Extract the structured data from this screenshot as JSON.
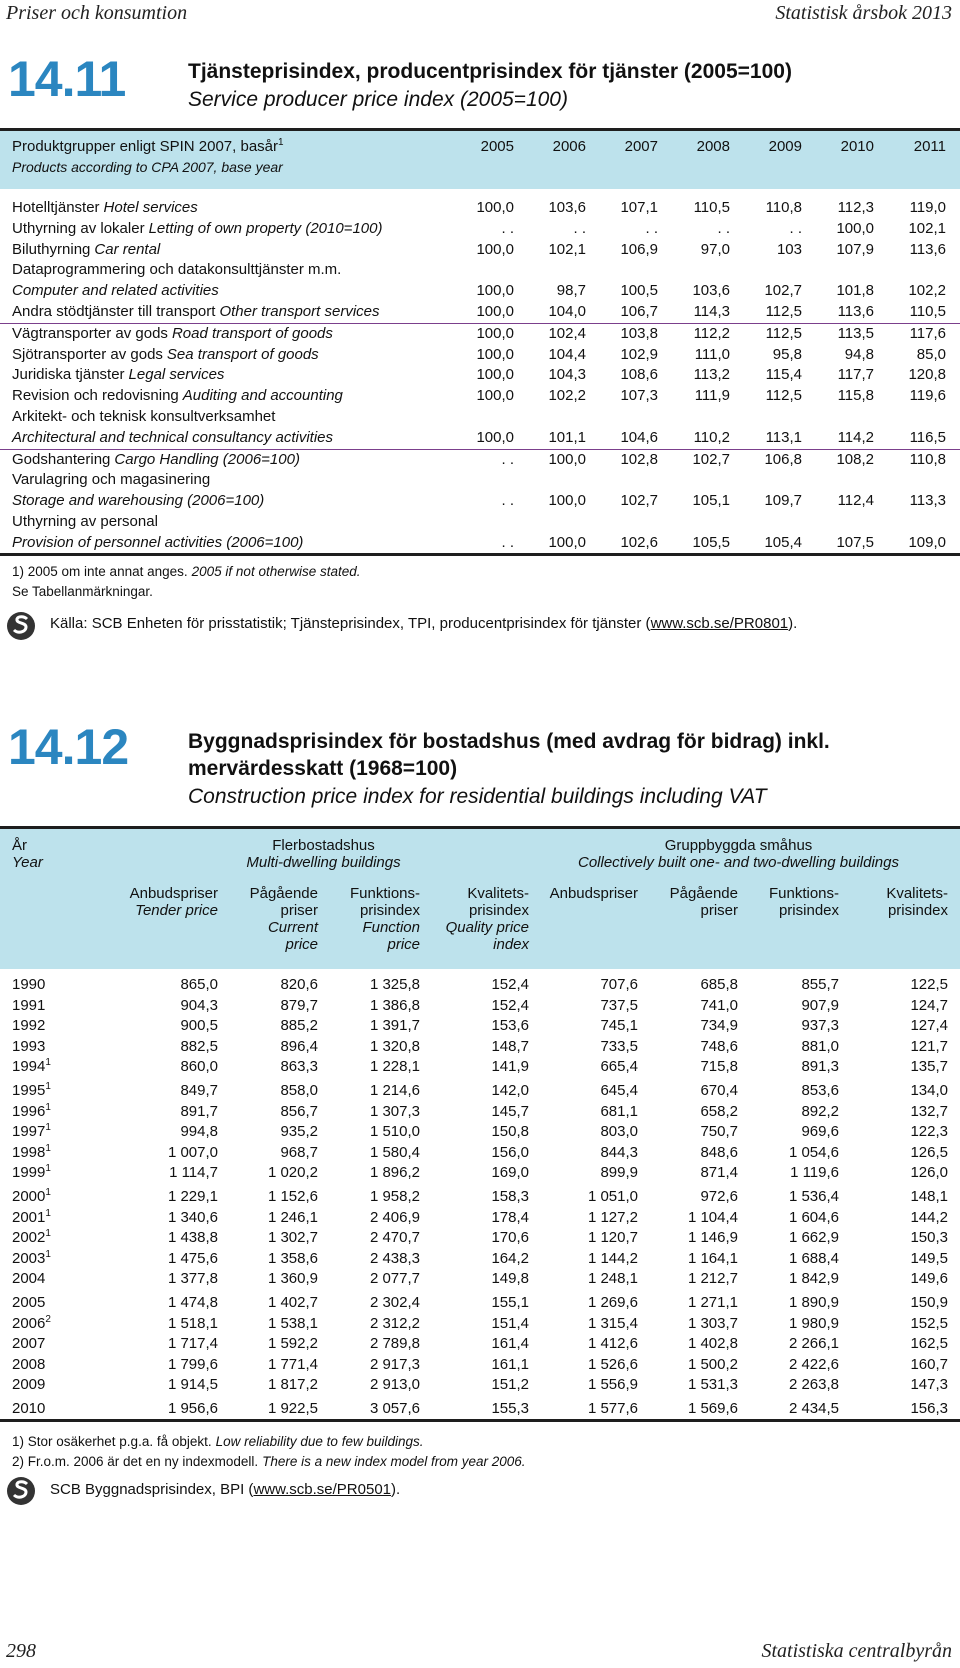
{
  "header": {
    "left": "Priser och konsumtion",
    "right": "Statistisk årsbok 2013"
  },
  "table1": {
    "number": "14.11",
    "title": "Tjänsteprisindex, producentprisindex för tjänster (2005=100)",
    "title_en": "Service producer price index (2005=100)",
    "stub": {
      "sv": "Produktgrupper enligt SPIN 2007, basår",
      "sup": "1",
      "en": "Products according to CPA 2007, base year"
    },
    "columns": [
      "2005",
      "2006",
      "2007",
      "2008",
      "2009",
      "2010",
      "2011"
    ],
    "rows": [
      {
        "lines": [
          {
            "sv": "Hotelltjänster",
            "en": "Hotel services"
          }
        ],
        "values": [
          "100,0",
          "103,6",
          "107,1",
          "110,5",
          "110,8",
          "112,3",
          "119,0"
        ]
      },
      {
        "lines": [
          {
            "sv": "Uthyrning av lokaler",
            "en": "Letting of own property (2010=100)"
          }
        ],
        "values": [
          ". .",
          ". .",
          ". .",
          ". .",
          ". .",
          "100,0",
          "102,1"
        ]
      },
      {
        "lines": [
          {
            "sv": "Biluthyrning",
            "en": "Car rental"
          }
        ],
        "values": [
          "100,0",
          "102,1",
          "106,9",
          "97,0",
          "103",
          "107,9",
          "113,6"
        ]
      },
      {
        "lines": [
          {
            "sv": "Dataprogrammering och datakonsulttjänster m.m."
          },
          {
            "en": "Computer and related activities"
          }
        ],
        "values": [
          "100,0",
          "98,7",
          "100,5",
          "103,6",
          "102,7",
          "101,8",
          "102,2"
        ]
      },
      {
        "lines": [
          {
            "sv": "Andra stödtjänster till transport",
            "en": "Other transport services"
          }
        ],
        "values": [
          "100,0",
          "104,0",
          "106,7",
          "114,3",
          "112,5",
          "113,6",
          "110,5"
        ]
      },
      {
        "lines": [
          {
            "sv": "Vägtransporter av gods",
            "en": "Road transport of goods"
          }
        ],
        "values": [
          "100,0",
          "102,4",
          "103,8",
          "112,2",
          "112,5",
          "113,5",
          "117,6"
        ]
      },
      {
        "lines": [
          {
            "sv": "Sjötransporter av gods",
            "en": "Sea transport of goods"
          }
        ],
        "values": [
          "100,0",
          "104,4",
          "102,9",
          "111,0",
          "95,8",
          "94,8",
          "85,0"
        ]
      },
      {
        "lines": [
          {
            "sv": "Juridiska tjänster",
            "en": "Legal services"
          }
        ],
        "values": [
          "100,0",
          "104,3",
          "108,6",
          "113,2",
          "115,4",
          "117,7",
          "120,8"
        ]
      },
      {
        "lines": [
          {
            "sv": "Revision och redovisning",
            "en": "Auditing and accounting"
          }
        ],
        "values": [
          "100,0",
          "102,2",
          "107,3",
          "111,9",
          "112,5",
          "115,8",
          "119,6"
        ]
      },
      {
        "lines": [
          {
            "sv": "Arkitekt- och teknisk konsultverksamhet"
          },
          {
            "en": "Architectural and technical consultancy activities"
          }
        ],
        "values": [
          "100,0",
          "101,1",
          "104,6",
          "110,2",
          "113,1",
          "114,2",
          "116,5"
        ]
      },
      {
        "lines": [
          {
            "sv": "Godshantering",
            "en": "Cargo Handling (2006=100)"
          }
        ],
        "values": [
          ". .",
          "100,0",
          "102,8",
          "102,7",
          "106,8",
          "108,2",
          "110,8"
        ]
      },
      {
        "lines": [
          {
            "sv": "Varulagring och magasinering"
          },
          {
            "en": "Storage and warehousing (2006=100)"
          }
        ],
        "values": [
          ". .",
          "100,0",
          "102,7",
          "105,1",
          "109,7",
          "112,4",
          "113,3"
        ]
      },
      {
        "lines": [
          {
            "sv": "Uthyrning av personal"
          },
          {
            "en": "Provision of personnel activities (2006=100)"
          }
        ],
        "values": [
          ". .",
          "100,0",
          "102,6",
          "105,5",
          "105,4",
          "107,5",
          "109,0"
        ]
      }
    ],
    "notes": [
      {
        "sv": "1) 2005 om inte annat anges.",
        "en": "2005 if not otherwise stated."
      },
      {
        "sv": "Se Tabellanmärkningar."
      }
    ],
    "source": {
      "text": "Källa: SCB Enheten för prisstatistik; Tjänsteprisindex, TPI, producentprisindex för tjänster (",
      "link": "www.scb.se/PR0801",
      "end": ")."
    }
  },
  "table2": {
    "number": "14.12",
    "title": "Byggnadsprisindex för bostadshus (med avdrag för bidrag) inkl. mervärdesskatt (1968=100)",
    "title_en": "Construction price index for residential buildings including VAT",
    "stub": {
      "sv": "År",
      "en": "Year"
    },
    "groups": [
      {
        "sv": "Flerbostadshus",
        "en": "Multi-dwelling buildings",
        "columns": [
          {
            "sv": "Anbudspriser",
            "en": "Tender price"
          },
          {
            "sv": "Pågående\npriser",
            "en": "Current\nprice"
          },
          {
            "sv": "Funktions-\nprisindex",
            "en": "Function\nprice"
          },
          {
            "sv": "Kvalitets-\nprisindex",
            "en": "Quality price\nindex"
          }
        ]
      },
      {
        "sv": "Gruppbyggda småhus",
        "en": "Collectively built one- and two-dwelling buildings",
        "columns": [
          {
            "sv": "Anbudspriser"
          },
          {
            "sv": "Pågående\npriser"
          },
          {
            "sv": "Funktions-\nprisindex"
          },
          {
            "sv": "Kvalitets-\nprisindex"
          }
        ]
      }
    ],
    "rows": [
      {
        "year": "1990",
        "values": [
          "865,0",
          "820,6",
          "1 325,8",
          "152,4",
          "707,6",
          "685,8",
          "855,7",
          "122,5"
        ]
      },
      {
        "year": "1991",
        "values": [
          "904,3",
          "879,7",
          "1 386,8",
          "152,4",
          "737,5",
          "741,0",
          "907,9",
          "124,7"
        ]
      },
      {
        "year": "1992",
        "values": [
          "900,5",
          "885,2",
          "1 391,7",
          "153,6",
          "745,1",
          "734,9",
          "937,3",
          "127,4"
        ]
      },
      {
        "year": "1993",
        "values": [
          "882,5",
          "896,4",
          "1 320,8",
          "148,7",
          "733,5",
          "748,6",
          "881,0",
          "121,7"
        ]
      },
      {
        "year": "1994",
        "sup": "1",
        "values": [
          "860,0",
          "863,3",
          "1 228,1",
          "141,9",
          "665,4",
          "715,8",
          "891,3",
          "135,7"
        ]
      },
      {
        "year": "1995",
        "sup": "1",
        "values": [
          "849,7",
          "858,0",
          "1 214,6",
          "142,0",
          "645,4",
          "670,4",
          "853,6",
          "134,0"
        ]
      },
      {
        "year": "1996",
        "sup": "1",
        "values": [
          "891,7",
          "856,7",
          "1 307,3",
          "145,7",
          "681,1",
          "658,2",
          "892,2",
          "132,7"
        ]
      },
      {
        "year": "1997",
        "sup": "1",
        "values": [
          "994,8",
          "935,2",
          "1 510,0",
          "150,8",
          "803,0",
          "750,7",
          "969,6",
          "122,3"
        ]
      },
      {
        "year": "1998",
        "sup": "1",
        "values": [
          "1 007,0",
          "968,7",
          "1 580,4",
          "156,0",
          "844,3",
          "848,6",
          "1 054,6",
          "126,5"
        ]
      },
      {
        "year": "1999",
        "sup": "1",
        "values": [
          "1 114,7",
          "1 020,2",
          "1 896,2",
          "169,0",
          "899,9",
          "871,4",
          "1 119,6",
          "126,0"
        ]
      },
      {
        "year": "2000",
        "sup": "1",
        "values": [
          "1 229,1",
          "1 152,6",
          "1 958,2",
          "158,3",
          "1 051,0",
          "972,6",
          "1 536,4",
          "148,1"
        ]
      },
      {
        "year": "2001",
        "sup": "1",
        "values": [
          "1 340,6",
          "1 246,1",
          "2 406,9",
          "178,4",
          "1 127,2",
          "1 104,4",
          "1 604,6",
          "144,2"
        ]
      },
      {
        "year": "2002",
        "sup": "1",
        "values": [
          "1 438,8",
          "1 302,7",
          "2 470,7",
          "170,6",
          "1 120,7",
          "1 146,9",
          "1 662,9",
          "150,3"
        ]
      },
      {
        "year": "2003",
        "sup": "1",
        "values": [
          "1 475,6",
          "1 358,6",
          "2 438,3",
          "164,2",
          "1 144,2",
          "1 164,1",
          "1 688,4",
          "149,5"
        ]
      },
      {
        "year": "2004",
        "values": [
          "1 377,8",
          "1 360,9",
          "2 077,7",
          "149,8",
          "1 248,1",
          "1 212,7",
          "1 842,9",
          "149,6"
        ]
      },
      {
        "year": "2005",
        "values": [
          "1 474,8",
          "1 402,7",
          "2 302,4",
          "155,1",
          "1 269,6",
          "1 271,1",
          "1 890,9",
          "150,9"
        ]
      },
      {
        "year": "2006",
        "sup": "2",
        "values": [
          "1 518,1",
          "1 538,1",
          "2 312,2",
          "151,4",
          "1 315,4",
          "1 303,7",
          "1 980,9",
          "152,5"
        ]
      },
      {
        "year": "2007",
        "values": [
          "1 717,4",
          "1 592,2",
          "2 789,8",
          "161,4",
          "1 412,6",
          "1 402,8",
          "2 266,1",
          "162,5"
        ]
      },
      {
        "year": "2008",
        "values": [
          "1 799,6",
          "1 771,4",
          "2 917,3",
          "161,1",
          "1 526,6",
          "1 500,2",
          "2 422,6",
          "160,7"
        ]
      },
      {
        "year": "2009",
        "values": [
          "1 914,5",
          "1 817,2",
          "2 913,0",
          "151,2",
          "1 556,9",
          "1 531,3",
          "2 263,8",
          "147,3"
        ]
      },
      {
        "year": "2010",
        "values": [
          "1 956,6",
          "1 922,5",
          "3 057,6",
          "155,3",
          "1 577,6",
          "1 569,6",
          "2 434,5",
          "156,3"
        ]
      }
    ],
    "notes": [
      {
        "sv": "1) Stor osäkerhet p.g.a. få objekt.",
        "en": "Low reliability due to few buildings."
      },
      {
        "sv": "2) Fr.o.m. 2006 är det en ny indexmodell.",
        "en": "There is a new index model from year 2006."
      }
    ],
    "source": {
      "text": "SCB Byggnadsprisindex, BPI (",
      "link": "www.scb.se/PR0501",
      "end": ")."
    }
  },
  "footer": {
    "left": "298",
    "right": "Statistiska centralbyrån"
  }
}
